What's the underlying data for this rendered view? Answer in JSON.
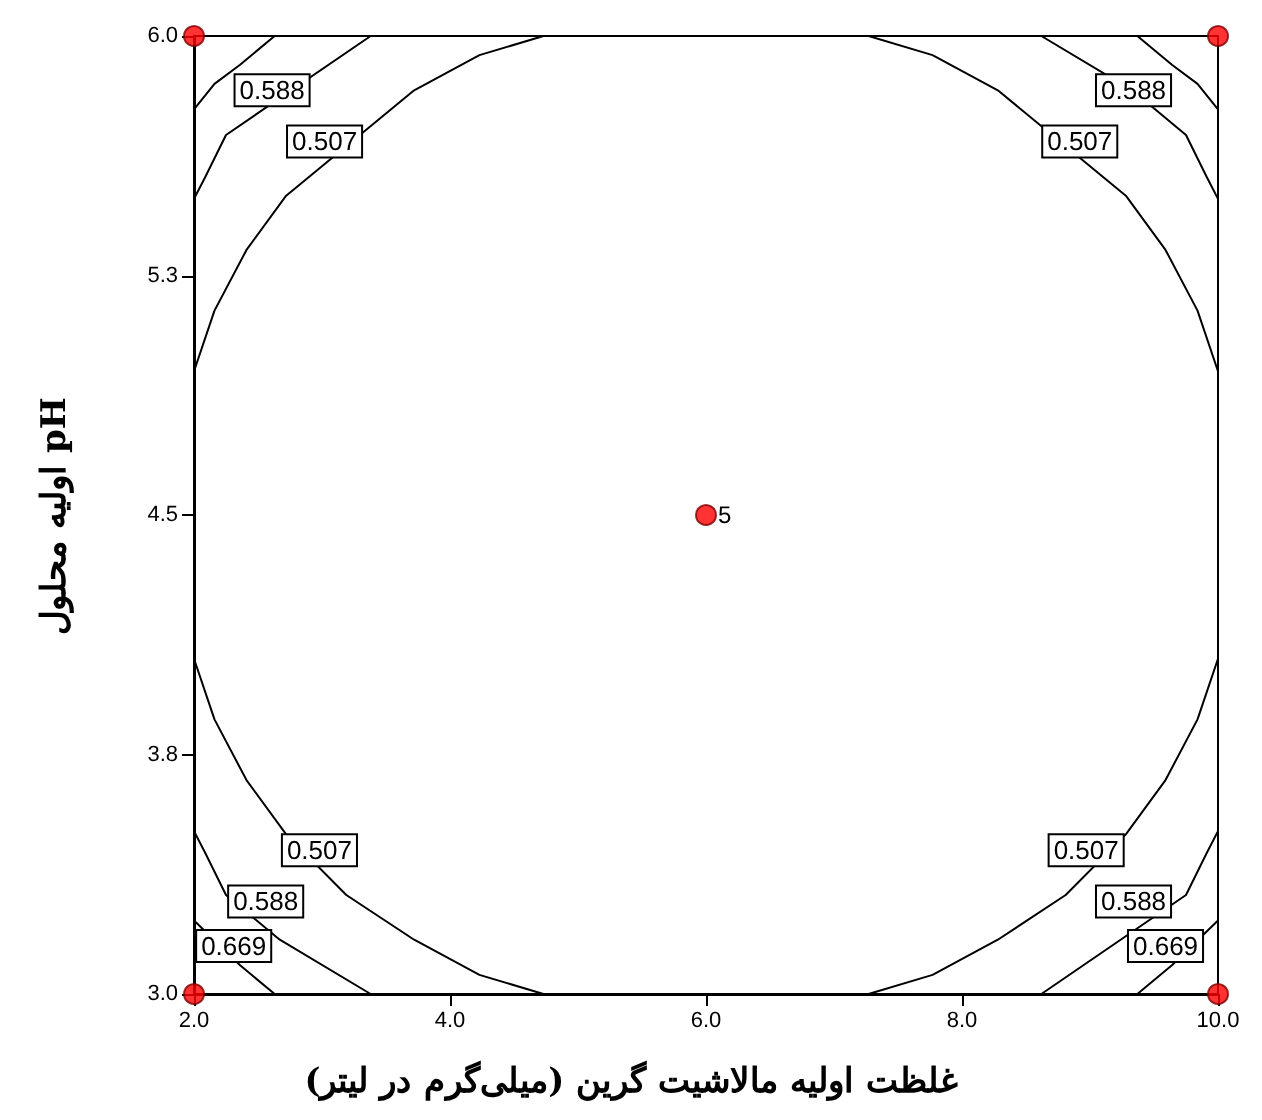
{
  "chart_data": {
    "type": "line",
    "xlabel": "غلظت اولیه مالاشیت گرین (میلی‌گرم در لیتر)",
    "ylabel": "pH اولیه محلول",
    "xlim": [
      2,
      10
    ],
    "ylim": [
      3,
      6
    ],
    "xticks": [
      {
        "value": 2,
        "label": "2.0"
      },
      {
        "value": 4,
        "label": "4.0"
      },
      {
        "value": 6,
        "label": "6.0"
      },
      {
        "value": 8,
        "label": "8.0"
      },
      {
        "value": 10,
        "label": "10.0"
      }
    ],
    "yticks": [
      {
        "value": 3,
        "label": "3.0"
      },
      {
        "value": 3.75,
        "label": "3.8"
      },
      {
        "value": 4.5,
        "label": "4.5"
      },
      {
        "value": 5.25,
        "label": "5.3"
      },
      {
        "value": 6,
        "label": "6.0"
      }
    ],
    "grid": false,
    "series": [
      {
        "color": "#000000",
        "x": [
          2.0,
          2.16,
          2.41,
          2.72,
          3.19,
          3.72,
          4.23,
          4.73
        ],
        "values": [
          4.05,
          3.86,
          3.67,
          3.5,
          3.31,
          3.17,
          3.06,
          3.0
        ]
      },
      {
        "color": "#000000",
        "x": [
          2.0,
          2.16,
          2.41,
          2.72,
          3.19,
          3.72,
          4.23,
          4.73
        ],
        "values": [
          4.95,
          5.14,
          5.33,
          5.5,
          null,
          5.83,
          5.94,
          6.0
        ]
      },
      {
        "color": "#000000",
        "x": [
          10.0,
          9.84,
          9.59,
          9.28,
          8.81,
          8.28,
          7.77,
          7.27
        ],
        "values": [
          4.05,
          3.86,
          3.67,
          3.5,
          3.31,
          3.17,
          3.06,
          3.0
        ]
      },
      {
        "color": "#000000",
        "x": [
          10.0,
          9.84,
          9.59,
          9.28,
          8.81,
          8.28,
          7.77,
          7.27
        ],
        "values": [
          4.95,
          5.14,
          5.33,
          5.5,
          null,
          5.83,
          5.94,
          6.0
        ]
      },
      {
        "color": "#000000",
        "x": [
          2.0,
          2.09,
          2.25,
          2.67,
          3.38
        ],
        "values": [
          3.51,
          3.44,
          3.31,
          3.17,
          3.0
        ]
      },
      {
        "color": "#000000",
        "x": [
          2.0,
          2.09,
          2.25,
          2.67,
          3.38
        ],
        "values": [
          5.49,
          5.56,
          5.69,
          null,
          6.0
        ]
      },
      {
        "color": "#000000",
        "x": [
          10.0,
          9.91,
          9.75,
          9.33,
          8.62
        ],
        "values": [
          3.51,
          3.44,
          3.31,
          null,
          3.0
        ]
      },
      {
        "color": "#000000",
        "x": [
          10.0,
          9.91,
          9.75,
          9.33,
          8.62
        ],
        "values": [
          5.49,
          5.56,
          5.69,
          5.83,
          6.0
        ]
      },
      {
        "color": "#000000",
        "x": [
          2.0,
          2.16,
          2.36,
          2.63
        ],
        "values": [
          3.23,
          null,
          3.09,
          3.0
        ]
      },
      {
        "color": "#000000",
        "x": [
          2.0,
          2.16,
          2.36,
          2.63
        ],
        "values": [
          5.77,
          5.85,
          5.91,
          6.0
        ]
      },
      {
        "color": "#000000",
        "x": [
          10.0,
          9.84,
          9.64,
          9.37
        ],
        "values": [
          3.23,
          null,
          3.09,
          3.0
        ]
      },
      {
        "color": "#000000",
        "x": [
          10.0,
          9.84,
          9.64,
          9.37
        ],
        "values": [
          5.77,
          5.85,
          5.91,
          6.0
        ]
      },
      {
        "type": "scatter",
        "color": "#ff0000",
        "x": [
          2,
          2,
          10,
          10,
          6
        ],
        "values": [
          3,
          6,
          3,
          6,
          4.5
        ]
      }
    ],
    "annotations": [
      {
        "text": "5",
        "x": 6,
        "y": 4.5
      },
      {
        "text": "0.588",
        "x": 2.61,
        "y": 5.83
      },
      {
        "text": "0.507",
        "x": 3.02,
        "y": 5.67
      },
      {
        "text": "0.588",
        "x": 9.34,
        "y": 5.83
      },
      {
        "text": "0.507",
        "x": 8.92,
        "y": 5.67
      },
      {
        "text": "0.507",
        "x": 2.98,
        "y": 3.45
      },
      {
        "text": "0.588",
        "x": 2.56,
        "y": 3.29
      },
      {
        "text": "0.669",
        "x": 2.31,
        "y": 3.15
      },
      {
        "text": "0.507",
        "x": 8.97,
        "y": 3.45
      },
      {
        "text": "0.588",
        "x": 9.34,
        "y": 3.29
      },
      {
        "text": "0.669",
        "x": 9.59,
        "y": 3.15
      }
    ]
  }
}
